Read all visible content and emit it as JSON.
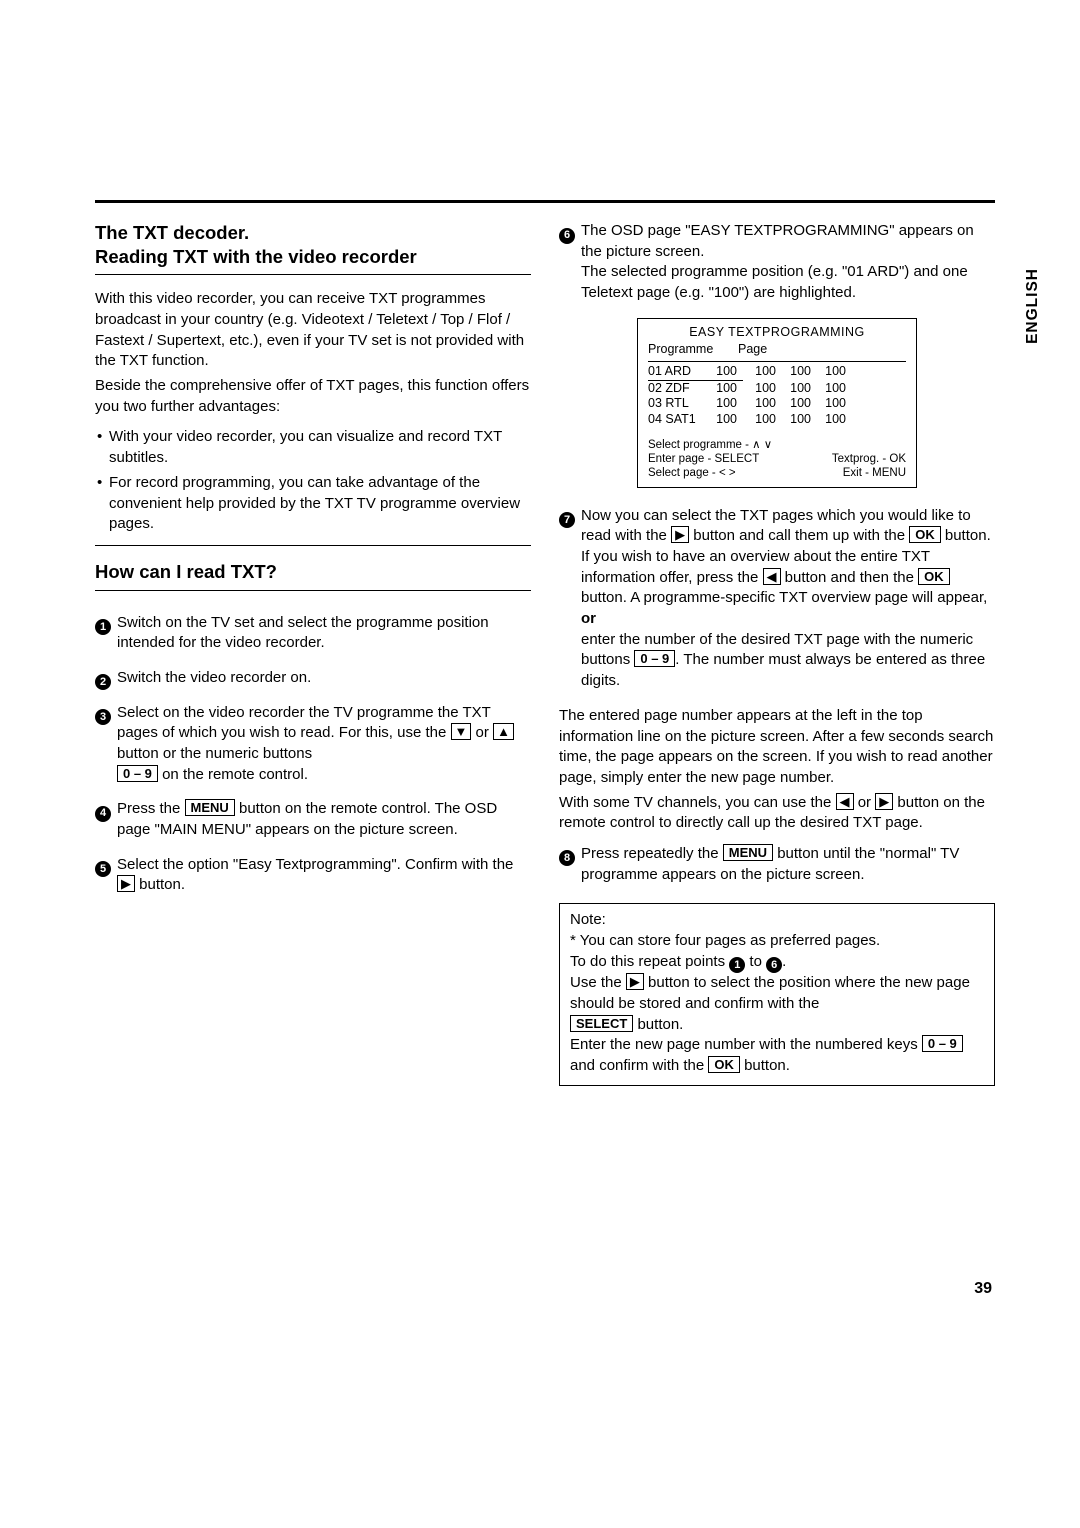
{
  "side_tab": "ENGLISH",
  "page_number": "39",
  "left": {
    "h1_line1": "The TXT decoder.",
    "h1_line2": "Reading TXT with the video recorder",
    "intro1": "With this video recorder, you can receive TXT programmes broadcast in your country (e.g. Videotext / Teletext / Top / Flof / Fastext / Supertext, etc.), even if your TV set is not provided with the TXT function.",
    "intro2": "Beside the comprehensive offer of TXT pages, this function offers you two further advantages:",
    "bullet1": "With your video recorder, you can visualize and record TXT subtitles.",
    "bullet2": "For record programming, you can take advantage of the convenient help provided by the TXT TV programme overview pages.",
    "h2": "How can I read TXT?",
    "s1": "Switch on the TV set and select the programme position intended for the video recorder.",
    "s2": "Switch the video recorder on.",
    "s3a": "Select on the video recorder the TV programme the TXT pages of which you wish to read. For this, use the ",
    "s3b": " or ",
    "s3c": " button or the numeric buttons ",
    "s3d": " on the remote control.",
    "s4a": "Press the ",
    "s4b": " button on the remote control. The OSD page \"MAIN MENU\" appears on the picture screen.",
    "s5a": "Select the option \"Easy Textprogramming\". Confirm with the ",
    "s5b": " button."
  },
  "right": {
    "s6a": "The OSD page \"EASY TEXTPROGRAMMING\" appears on the picture screen.",
    "s6b": "The selected programme position (e.g. \"01  ARD\") and one Teletext page (e.g. \"100\") are highlighted.",
    "s7a": "Now you can select the TXT pages which you would like to read with the ",
    "s7b": " button and call them up with the ",
    "s7c": " button.",
    "s7d": "If you wish to have an overview about the entire TXT information offer, press the ",
    "s7e": " button and then the ",
    "s7f": " button. A programme-specific TXT overview page will appear, ",
    "or": "or",
    "s7g": "enter the number of the desired TXT page with the numeric buttons ",
    "s7h": ". The number must always be entered as three digits.",
    "mid1": "The entered page number appears at the left in the top information line on the picture screen. After a few seconds search time, the page appears on the screen. If you wish to read another page, simply enter the new page number.",
    "mid2a": "With some TV channels, you can use the ",
    "mid2b": " or ",
    "mid2c": " button on the remote control to directly call up the desired TXT page.",
    "s8a": "Press repeatedly the ",
    "s8b": " button until the \"normal\" TV programme appears on the picture screen.",
    "note_title": "Note:",
    "note1": "* You can store four pages as preferred pages.",
    "note2a": "To do this repeat points ",
    "note2b": " to ",
    "note2c": ".",
    "note3a": "Use the ",
    "note3b": " button to select the position where the new page should be stored and confirm with the ",
    "note3c": " button.",
    "note4a": "Enter the new page number with the numbered keys ",
    "note4b": " and confirm with the ",
    "note4c": " button."
  },
  "keys": {
    "down": "▼",
    "up": "▲",
    "right": "▶",
    "left": "◀",
    "zeronine": "0 – 9",
    "menu": "MENU",
    "ok": "OK",
    "select": "SELECT"
  },
  "osd": {
    "title": "EASY TEXTPROGRAMMING",
    "col_prog": "Programme",
    "col_page": "Page",
    "rows": [
      {
        "ch": "01 ARD",
        "p": [
          "100",
          "100",
          "100",
          "100"
        ],
        "sel": true
      },
      {
        "ch": "02 ZDF",
        "p": [
          "100",
          "100",
          "100",
          "100"
        ],
        "sel": false
      },
      {
        "ch": "03 RTL",
        "p": [
          "100",
          "100",
          "100",
          "100"
        ],
        "sel": false
      },
      {
        "ch": "04 SAT1",
        "p": [
          "100",
          "100",
          "100",
          "100"
        ],
        "sel": false
      }
    ],
    "f1": "Select programme - ∧ ∨",
    "f2l": "Enter page - SELECT",
    "f2r": "Textprog. - OK",
    "f3l": "Select page - < >",
    "f3r": "Exit - MENU"
  }
}
